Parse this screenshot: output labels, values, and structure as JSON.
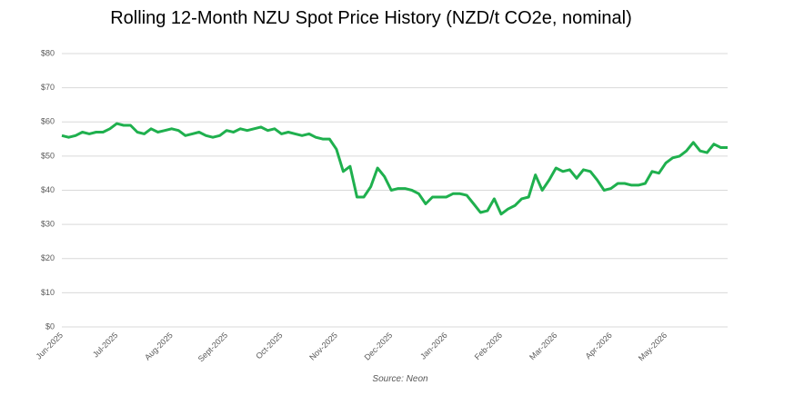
{
  "chart_data": {
    "type": "line",
    "title": "Rolling 12-Month NZU Spot Price History (NZD/t CO2e, nominal)",
    "source": "Source: Neon",
    "categories": [
      "Jun-2025",
      null,
      null,
      null,
      null,
      null,
      null,
      null,
      "Jul-2025",
      null,
      null,
      null,
      null,
      null,
      null,
      null,
      "Aug-2025",
      null,
      null,
      null,
      null,
      null,
      null,
      null,
      "Sept-2025",
      null,
      null,
      null,
      null,
      null,
      null,
      null,
      "Oct-2025",
      null,
      null,
      null,
      null,
      null,
      null,
      null,
      "Nov-2025",
      null,
      null,
      null,
      null,
      null,
      null,
      null,
      "Dec-2025",
      null,
      null,
      null,
      null,
      null,
      null,
      null,
      "Jan-2026",
      null,
      null,
      null,
      null,
      null,
      null,
      null,
      "Feb-2026",
      null,
      null,
      null,
      null,
      null,
      null,
      null,
      "Mar-2026",
      null,
      null,
      null,
      null,
      null,
      null,
      null,
      "Apr-2026",
      null,
      null,
      null,
      null,
      null,
      null,
      null,
      "May-2026",
      null,
      null,
      null,
      null,
      null,
      null,
      null,
      null,
      null
    ],
    "values": [
      56,
      55.5,
      56,
      57,
      56.5,
      57,
      57,
      58,
      59.5,
      59,
      59,
      57,
      56.5,
      58,
      57,
      57.5,
      58,
      57.5,
      56,
      56.5,
      57,
      56,
      55.5,
      56,
      57.5,
      57,
      58,
      57.5,
      58,
      58.5,
      57.5,
      58,
      56.5,
      57,
      56.5,
      56,
      56.5,
      55.5,
      55,
      55,
      52,
      45.5,
      47,
      38,
      38,
      41,
      46.5,
      44,
      40,
      40.5,
      40.5,
      40,
      39,
      36,
      38,
      38,
      38,
      39,
      39,
      38.5,
      36,
      33.5,
      34,
      37.5,
      33,
      34.5,
      35.5,
      37.5,
      38,
      44.5,
      40,
      43,
      46.5,
      45.5,
      46,
      43.5,
      46,
      45.5,
      43,
      40,
      40.5,
      42,
      42,
      41.5,
      41.5,
      42,
      45.5,
      45,
      48,
      49.5,
      50,
      51.5,
      54,
      51.5,
      51,
      53.5,
      52.5,
      52.5
    ],
    "color": "#1fb04e",
    "ylim": [
      0,
      80
    ],
    "yticks": [
      {
        "value": 0,
        "label": "$0"
      },
      {
        "value": 10,
        "label": "$10"
      },
      {
        "value": 20,
        "label": "$20"
      },
      {
        "value": 30,
        "label": "$30"
      },
      {
        "value": 40,
        "label": "$40"
      },
      {
        "value": 50,
        "label": "$50"
      },
      {
        "value": 60,
        "label": "$60"
      },
      {
        "value": 70,
        "label": "$70"
      },
      {
        "value": 80,
        "label": "$80"
      }
    ],
    "grid": true
  }
}
